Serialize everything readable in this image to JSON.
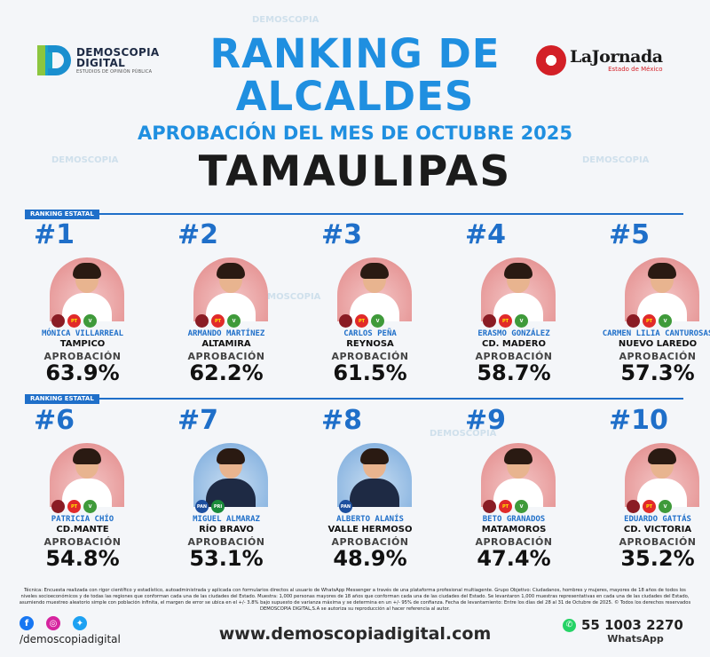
{
  "brand": {
    "name_line1": "DEMOSCOPIA",
    "name_line2": "DIGITAL",
    "tagline": "ESTUDIOS DE OPINIÓN PÚBLICA"
  },
  "partner": {
    "name": "LaJornada",
    "sub": "Estado de México"
  },
  "header": {
    "title_line1": "RANKING DE",
    "title_line2": "ALCALDES",
    "subtitle": "APROBACIÓN DEL MES DE OCTUBRE 2025",
    "state": "TAMAULIPAS"
  },
  "section_label": "RANKING ESTATAL",
  "approval_label": "APROBACIÓN",
  "colors": {
    "accent": "#1f8fe0",
    "rank_blue": "#1f6fc9",
    "photo_pink": "#e79a9a",
    "photo_blue": "#8fb8e2"
  },
  "mayors": [
    {
      "rank": "#1",
      "name": "MÓNICA VILLARREAL",
      "city": "TAMPICO",
      "approval": "63.9%",
      "bg": "pink",
      "parties": [
        "morena",
        "pt",
        "verde"
      ]
    },
    {
      "rank": "#2",
      "name": "ARMANDO MARTÍNEZ",
      "city": "ALTAMIRA",
      "approval": "62.2%",
      "bg": "pink",
      "parties": [
        "morena",
        "pt",
        "verde"
      ]
    },
    {
      "rank": "#3",
      "name": "CARLOS PEÑA",
      "city": "REYNOSA",
      "approval": "61.5%",
      "bg": "pink",
      "parties": [
        "morena",
        "pt",
        "verde"
      ]
    },
    {
      "rank": "#4",
      "name": "ERASMO GONZÁLEZ",
      "city": "CD. MADERO",
      "approval": "58.7%",
      "bg": "pink",
      "parties": [
        "morena",
        "pt",
        "verde"
      ]
    },
    {
      "rank": "#5",
      "name": "CARMEN LILIA CANTUROSAS",
      "city": "NUEVO LAREDO",
      "approval": "57.3%",
      "bg": "pink",
      "parties": [
        "morena",
        "pt",
        "verde"
      ]
    },
    {
      "rank": "#6",
      "name": "PATRICIA CHÍO",
      "city": "CD.MANTE",
      "approval": "54.8%",
      "bg": "pink",
      "parties": [
        "morena",
        "pt",
        "verde"
      ]
    },
    {
      "rank": "#7",
      "name": "MIGUEL ALMARAZ",
      "city": "RÍO BRAVO",
      "approval": "53.1%",
      "bg": "blue",
      "parties": [
        "pan",
        "pri"
      ]
    },
    {
      "rank": "#8",
      "name": "ALBERTO ALANÍS",
      "city": "VALLE HERMOSO",
      "approval": "48.9%",
      "bg": "blue",
      "parties": [
        "pan"
      ]
    },
    {
      "rank": "#9",
      "name": "BETO GRANADOS",
      "city": "MATAMOROS",
      "approval": "47.4%",
      "bg": "pink",
      "parties": [
        "morena",
        "pt",
        "verde"
      ]
    },
    {
      "rank": "#10",
      "name": "EDUARDO GATTÁS",
      "city": "CD. VICTORIA",
      "approval": "35.2%",
      "bg": "pink",
      "parties": [
        "morena",
        "pt",
        "verde"
      ]
    }
  ],
  "party_labels": {
    "morena": "",
    "pt": "PT",
    "verde": "V",
    "pan": "PAN",
    "pri": "PRI"
  },
  "footer": {
    "note": "Técnica: Encuesta realizada con rigor científico y estadístico, autoadministrada y aplicada con formularios directos al usuario de WhatsApp Messenger a través de una plataforma profesional multiagente. Grupo Objetivo: Ciudadanos, hombres y mujeres, mayores de 18 años de todos los niveles socioeconómicos y de todas las regiones que conforman cada una de las ciudades del Estado. Muestra: 1,000 personas mayores de 18 años que conforman cada una de las ciudades del Estado. Se levantaron 1,000 muestras representativas en cada una de las ciudades del Estado, asumiendo muestreo aleatorio simple con población infinita, el margen de error se ubica en el +/- 3.8% bajo supuesto de varianza máxima y se determina en un +/- 95% de confianza. Fecha de levantamiento: Entre los días del 28 al 31 de Octubre de 2025. © Todos los derechos reservados DEMOSCOPIA DIGITAL,S.A se autoriza su reproducción al hacer referencia al autor.",
    "handle": "/demoscopiadigital",
    "website": "www.demoscopiadigital.com",
    "phone": "55 1003 2270",
    "whatsapp_label": "WhatsApp"
  }
}
